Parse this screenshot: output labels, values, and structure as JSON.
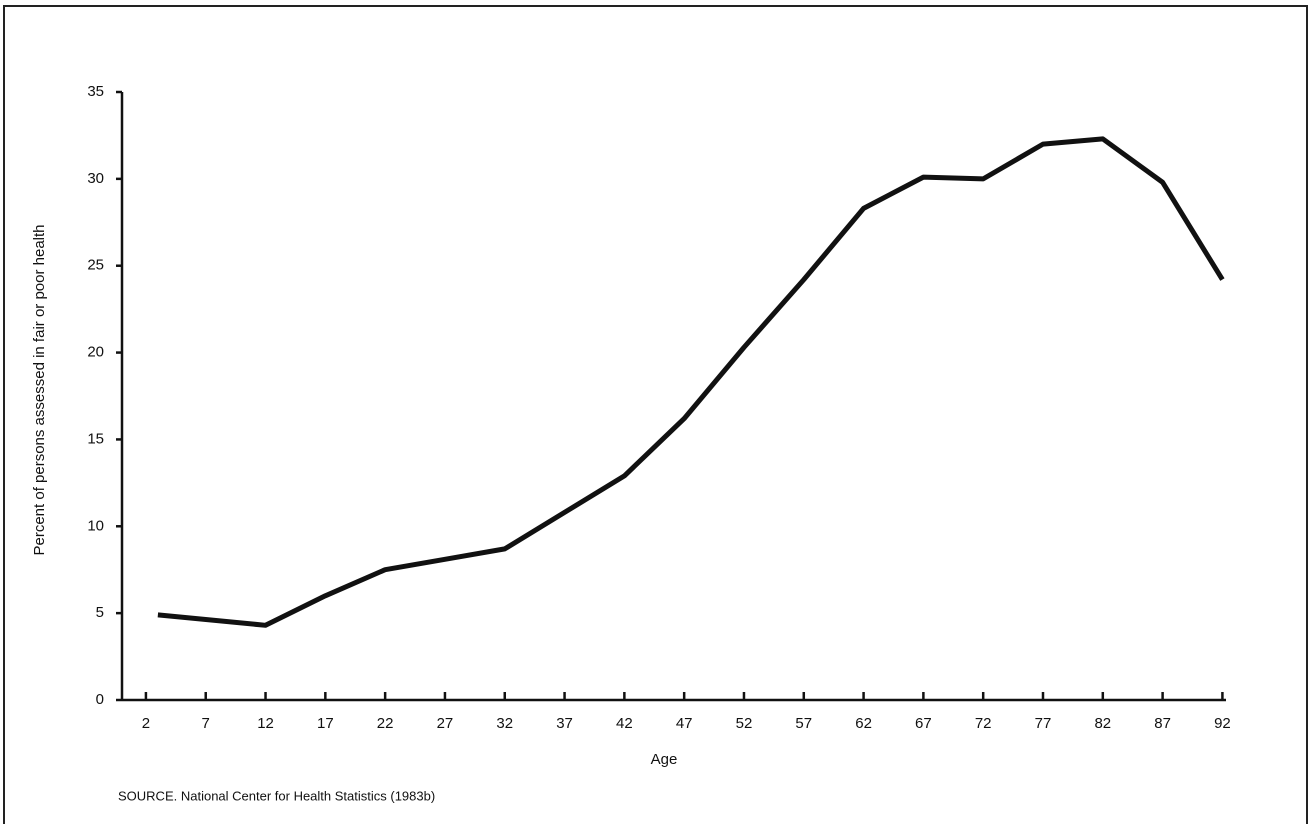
{
  "chart_data": {
    "type": "line",
    "x_label": "Age",
    "y_label": "Percent of persons assessed in fair or poor health",
    "source": "SOURCE. National Center for Health Statistics (1983b)",
    "x": [
      3,
      12,
      17,
      22,
      27,
      32,
      37,
      42,
      47,
      52,
      57,
      62,
      67,
      72,
      77,
      82,
      87,
      92
    ],
    "values": [
      4.9,
      4.3,
      6.0,
      7.5,
      8.1,
      8.7,
      10.8,
      12.9,
      16.2,
      20.3,
      24.2,
      28.3,
      30.1,
      30.0,
      32.0,
      32.3,
      29.8,
      24.2
    ],
    "color": "#111111",
    "xlim": [
      0,
      92.3
    ],
    "xticks": [
      2,
      7,
      12,
      17,
      22,
      27,
      32,
      37,
      42,
      47,
      52,
      57,
      62,
      67,
      72,
      77,
      82,
      87,
      92
    ],
    "ylim": [
      0,
      35
    ],
    "yticks": [
      0,
      5,
      10,
      15,
      20,
      25,
      30,
      35
    ],
    "grid": false
  }
}
